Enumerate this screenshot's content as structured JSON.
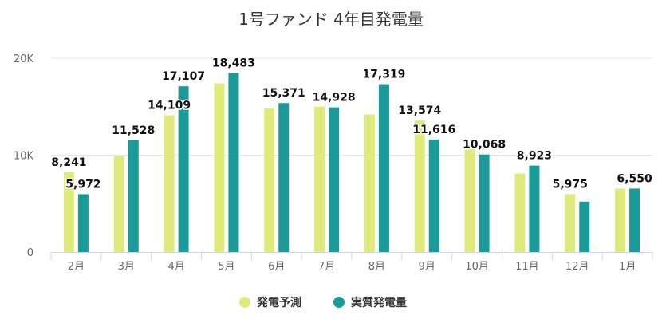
{
  "chart_data": {
    "type": "bar",
    "title": "1号ファンド 4年目発電量",
    "categories": [
      "2月",
      "3月",
      "4月",
      "5月",
      "6月",
      "7月",
      "8月",
      "9月",
      "10月",
      "11月",
      "12月",
      "1月"
    ],
    "series": [
      {
        "name": "発電予測",
        "color": "#e0ea7a",
        "values": [
          8241,
          9900,
          14109,
          17400,
          14800,
          15000,
          14200,
          13574,
          10600,
          8100,
          5975,
          6550
        ],
        "labels": [
          "8,241",
          "",
          "14,109",
          "",
          "",
          "",
          "",
          "13,574",
          "",
          "",
          "5,975",
          ""
        ]
      },
      {
        "name": "実質発電量",
        "color": "#1b9a9a",
        "values": [
          5972,
          11528,
          17107,
          18483,
          15371,
          14928,
          17319,
          11616,
          10068,
          8923,
          5200,
          6550
        ],
        "labels": [
          "5,972",
          "11,528",
          "17,107",
          "18,483",
          "15,371",
          "14,928",
          "17,319",
          "11,616",
          "10,068",
          "8,923",
          "",
          "6,550"
        ]
      }
    ],
    "ylim": [
      0,
      20000
    ],
    "yticks": [
      0,
      10000,
      20000
    ],
    "ytick_labels": [
      "0",
      "10K",
      "20K"
    ],
    "grid": true,
    "legend": "bottom-center"
  }
}
